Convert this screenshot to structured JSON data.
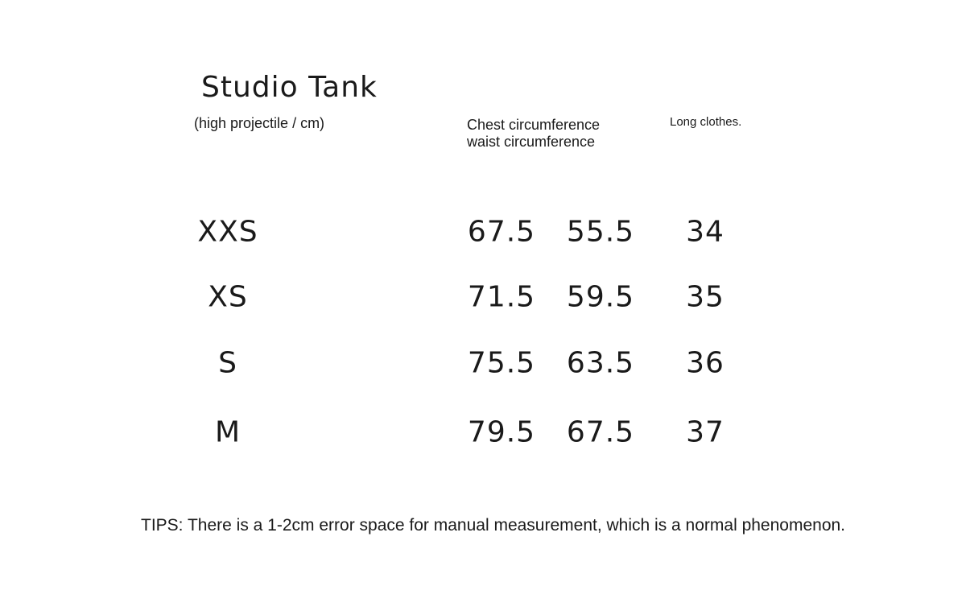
{
  "title": "Studio Tank",
  "subtitle": "(high projectile / cm)",
  "headers": {
    "chest": "Chest circumference",
    "waist": "waist circumference",
    "length": "Long clothes."
  },
  "rows": [
    {
      "size": "XXS",
      "chest": "67.5",
      "waist": "55.5",
      "length": "34"
    },
    {
      "size": "XS",
      "chest": "71.5",
      "waist": "59.5",
      "length": "35"
    },
    {
      "size": "S",
      "chest": "75.5",
      "waist": "63.5",
      "length": "36"
    },
    {
      "size": "M",
      "chest": "79.5",
      "waist": "67.5",
      "length": "37"
    }
  ],
  "tips": "TIPS: There is a 1-2cm error space for manual measurement, which is a normal phenomenon."
}
